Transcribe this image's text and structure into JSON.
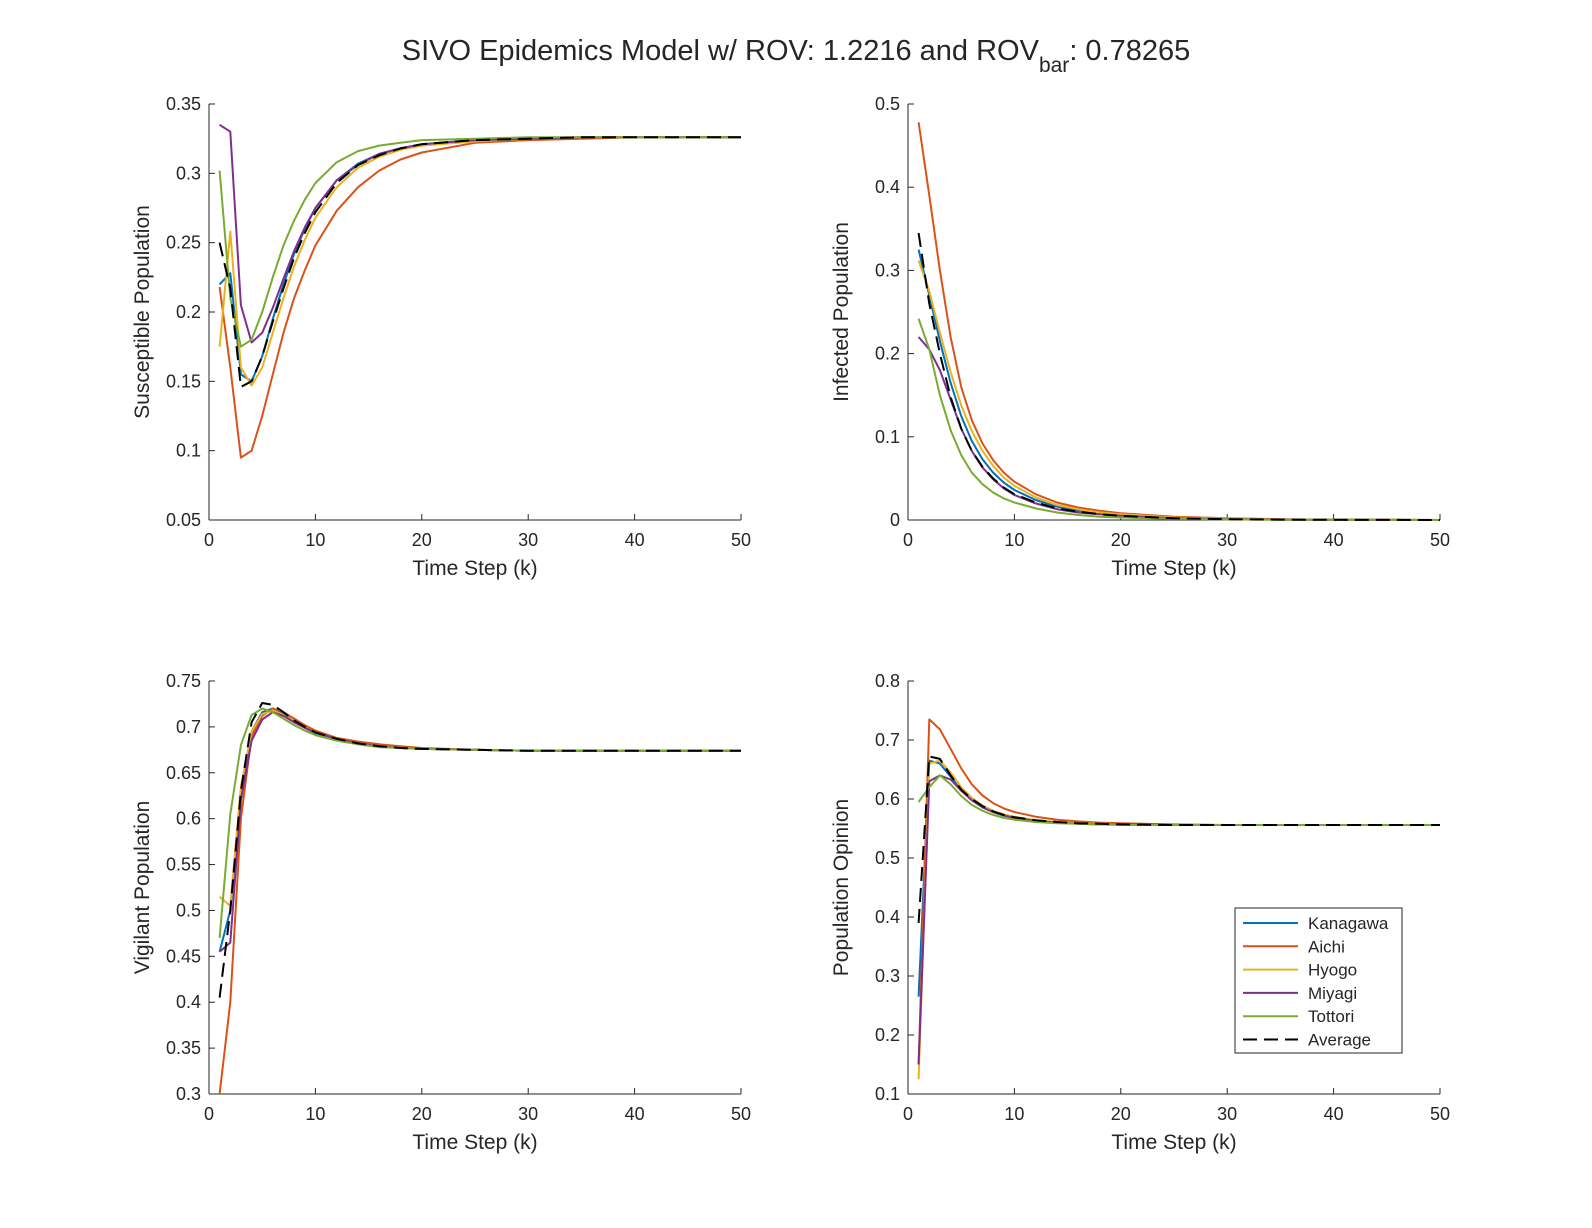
{
  "figure": {
    "title_main": "SIVO Epidemics Model w/ ROV: 1.2216 and ROV",
    "title_sub": "bar",
    "title_tail": ": 0.78265"
  },
  "colors": {
    "Kanagawa": "#0072BD",
    "Aichi": "#D95319",
    "Hyogo": "#EDB120",
    "Miyagi": "#7E2F8E",
    "Tottori": "#77AC30",
    "Average": "#000000",
    "axis": "#262626"
  },
  "legend": [
    "Kanagawa",
    "Aichi",
    "Hyogo",
    "Miyagi",
    "Tottori",
    "Average"
  ],
  "chart_data": [
    {
      "type": "line",
      "id": "susceptible",
      "xlabel": "Time Step (k)",
      "ylabel": "Susceptible Population",
      "xlim": [
        0,
        50
      ],
      "ylim": [
        0.05,
        0.35
      ],
      "xticks": [
        "0",
        "10",
        "20",
        "30",
        "40",
        "50"
      ],
      "yticks": [
        "0.05",
        "0.1",
        "0.15",
        "0.2",
        "0.25",
        "0.3",
        "0.35"
      ],
      "x": [
        1,
        2,
        3,
        4,
        5,
        6,
        7,
        8,
        9,
        10,
        12,
        14,
        16,
        18,
        20,
        25,
        30,
        35,
        40,
        45,
        50
      ],
      "series": [
        {
          "name": "Kanagawa",
          "values": [
            0.22,
            0.228,
            0.155,
            0.15,
            0.168,
            0.195,
            0.22,
            0.242,
            0.26,
            0.275,
            0.295,
            0.307,
            0.314,
            0.318,
            0.321,
            0.324,
            0.325,
            0.326,
            0.326,
            0.326,
            0.326
          ]
        },
        {
          "name": "Aichi",
          "values": [
            0.218,
            0.16,
            0.095,
            0.1,
            0.125,
            0.155,
            0.185,
            0.21,
            0.23,
            0.248,
            0.273,
            0.29,
            0.302,
            0.31,
            0.315,
            0.322,
            0.324,
            0.325,
            0.326,
            0.326,
            0.326
          ]
        },
        {
          "name": "Hyogo",
          "values": [
            0.175,
            0.258,
            0.16,
            0.147,
            0.16,
            0.185,
            0.21,
            0.233,
            0.252,
            0.268,
            0.29,
            0.304,
            0.312,
            0.317,
            0.32,
            0.323,
            0.325,
            0.326,
            0.326,
            0.326,
            0.326
          ]
        },
        {
          "name": "Miyagi",
          "values": [
            0.335,
            0.33,
            0.205,
            0.178,
            0.185,
            0.203,
            0.224,
            0.244,
            0.261,
            0.275,
            0.295,
            0.306,
            0.314,
            0.318,
            0.321,
            0.324,
            0.325,
            0.326,
            0.326,
            0.326,
            0.326
          ]
        },
        {
          "name": "Tottori",
          "values": [
            0.302,
            0.21,
            0.175,
            0.18,
            0.2,
            0.225,
            0.248,
            0.266,
            0.281,
            0.293,
            0.308,
            0.316,
            0.32,
            0.322,
            0.324,
            0.325,
            0.326,
            0.326,
            0.326,
            0.326,
            0.326
          ]
        },
        {
          "name": "Average",
          "values": [
            0.25,
            0.217,
            0.146,
            0.15,
            0.168,
            0.193,
            0.217,
            0.239,
            0.257,
            0.272,
            0.293,
            0.306,
            0.313,
            0.318,
            0.321,
            0.324,
            0.325,
            0.326,
            0.326,
            0.326,
            0.326
          ]
        }
      ]
    },
    {
      "type": "line",
      "id": "infected",
      "xlabel": "Time Step (k)",
      "ylabel": "Infected Population",
      "xlim": [
        0,
        50
      ],
      "ylim": [
        0,
        0.5
      ],
      "xticks": [
        "0",
        "10",
        "20",
        "30",
        "40",
        "50"
      ],
      "yticks": [
        "0",
        "0.1",
        "0.2",
        "0.3",
        "0.4",
        "0.5"
      ],
      "x": [
        1,
        2,
        3,
        4,
        5,
        6,
        7,
        8,
        9,
        10,
        12,
        14,
        16,
        18,
        20,
        25,
        30,
        35,
        40,
        45,
        50
      ],
      "series": [
        {
          "name": "Kanagawa",
          "values": [
            0.325,
            0.27,
            0.215,
            0.165,
            0.125,
            0.095,
            0.073,
            0.057,
            0.045,
            0.036,
            0.024,
            0.016,
            0.011,
            0.008,
            0.006,
            0.003,
            0.001,
            0.0005,
            0.0002,
            0.0001,
            0.0
          ]
        },
        {
          "name": "Aichi",
          "values": [
            0.478,
            0.39,
            0.3,
            0.22,
            0.16,
            0.12,
            0.092,
            0.072,
            0.057,
            0.046,
            0.031,
            0.021,
            0.015,
            0.011,
            0.008,
            0.004,
            0.002,
            0.001,
            0.0004,
            0.0002,
            0.0
          ]
        },
        {
          "name": "Hyogo",
          "values": [
            0.312,
            0.275,
            0.225,
            0.178,
            0.138,
            0.107,
            0.083,
            0.065,
            0.051,
            0.041,
            0.027,
            0.018,
            0.013,
            0.009,
            0.007,
            0.003,
            0.0015,
            0.0007,
            0.0003,
            0.0001,
            0.0
          ]
        },
        {
          "name": "Miyagi",
          "values": [
            0.22,
            0.205,
            0.18,
            0.145,
            0.11,
            0.083,
            0.063,
            0.049,
            0.038,
            0.03,
            0.02,
            0.013,
            0.009,
            0.007,
            0.005,
            0.002,
            0.001,
            0.0005,
            0.0002,
            0.0001,
            0.0
          ]
        },
        {
          "name": "Tottori",
          "values": [
            0.242,
            0.205,
            0.15,
            0.108,
            0.078,
            0.057,
            0.043,
            0.033,
            0.026,
            0.021,
            0.014,
            0.009,
            0.006,
            0.004,
            0.003,
            0.0015,
            0.0007,
            0.0003,
            0.0001,
            0.0,
            0.0
          ]
        },
        {
          "name": "Average",
          "values": [
            0.345,
            0.26,
            0.2,
            0.148,
            0.11,
            0.083,
            0.064,
            0.05,
            0.039,
            0.031,
            0.021,
            0.014,
            0.01,
            0.007,
            0.005,
            0.002,
            0.001,
            0.0005,
            0.0002,
            0.0001,
            0.0
          ]
        }
      ]
    },
    {
      "type": "line",
      "id": "vigilant",
      "xlabel": "Time Step (k)",
      "ylabel": "Vigilant Population",
      "xlim": [
        0,
        50
      ],
      "ylim": [
        0.3,
        0.75
      ],
      "xticks": [
        "0",
        "10",
        "20",
        "30",
        "40",
        "50"
      ],
      "yticks": [
        "0.3",
        "0.35",
        "0.4",
        "0.45",
        "0.5",
        "0.55",
        "0.6",
        "0.65",
        "0.7",
        "0.75"
      ],
      "x": [
        1,
        2,
        3,
        4,
        5,
        6,
        7,
        8,
        9,
        10,
        12,
        14,
        16,
        18,
        20,
        25,
        30,
        35,
        40,
        45,
        50
      ],
      "series": [
        {
          "name": "Kanagawa",
          "values": [
            0.455,
            0.5,
            0.63,
            0.695,
            0.716,
            0.72,
            0.714,
            0.706,
            0.699,
            0.693,
            0.686,
            0.682,
            0.679,
            0.677,
            0.676,
            0.675,
            0.674,
            0.674,
            0.674,
            0.674,
            0.674
          ]
        },
        {
          "name": "Aichi",
          "values": [
            0.3,
            0.4,
            0.6,
            0.69,
            0.712,
            0.72,
            0.716,
            0.709,
            0.702,
            0.696,
            0.688,
            0.684,
            0.681,
            0.679,
            0.677,
            0.675,
            0.674,
            0.674,
            0.674,
            0.674,
            0.674
          ]
        },
        {
          "name": "Hyogo",
          "values": [
            0.515,
            0.505,
            0.635,
            0.695,
            0.714,
            0.718,
            0.713,
            0.706,
            0.699,
            0.694,
            0.687,
            0.682,
            0.679,
            0.677,
            0.676,
            0.675,
            0.674,
            0.674,
            0.674,
            0.674,
            0.674
          ]
        },
        {
          "name": "Miyagi",
          "values": [
            0.455,
            0.465,
            0.62,
            0.685,
            0.708,
            0.716,
            0.712,
            0.705,
            0.699,
            0.694,
            0.687,
            0.682,
            0.679,
            0.677,
            0.676,
            0.675,
            0.674,
            0.674,
            0.674,
            0.674,
            0.674
          ]
        },
        {
          "name": "Tottori",
          "values": [
            0.47,
            0.605,
            0.68,
            0.713,
            0.72,
            0.716,
            0.709,
            0.702,
            0.696,
            0.691,
            0.685,
            0.681,
            0.678,
            0.677,
            0.676,
            0.675,
            0.674,
            0.674,
            0.674,
            0.674,
            0.674
          ]
        },
        {
          "name": "Average",
          "values": [
            0.405,
            0.5,
            0.63,
            0.705,
            0.726,
            0.724,
            0.716,
            0.707,
            0.7,
            0.694,
            0.687,
            0.682,
            0.679,
            0.677,
            0.676,
            0.675,
            0.674,
            0.674,
            0.674,
            0.674,
            0.674
          ]
        }
      ]
    },
    {
      "type": "line",
      "id": "opinion",
      "xlabel": "Time Step (k)",
      "ylabel": "Population Opinion",
      "xlim": [
        0,
        50
      ],
      "ylim": [
        0.1,
        0.8
      ],
      "xticks": [
        "0",
        "10",
        "20",
        "30",
        "40",
        "50"
      ],
      "yticks": [
        "0.1",
        "0.2",
        "0.3",
        "0.4",
        "0.5",
        "0.6",
        "0.7",
        "0.8"
      ],
      "x": [
        1,
        2,
        3,
        4,
        5,
        6,
        7,
        8,
        9,
        10,
        12,
        14,
        16,
        18,
        20,
        25,
        30,
        35,
        40,
        45,
        50
      ],
      "series": [
        {
          "name": "Kanagawa",
          "values": [
            0.265,
            0.665,
            0.66,
            0.638,
            0.615,
            0.598,
            0.586,
            0.578,
            0.572,
            0.568,
            0.563,
            0.56,
            0.558,
            0.557,
            0.557,
            0.556,
            0.556,
            0.556,
            0.556,
            0.556,
            0.556
          ]
        },
        {
          "name": "Aichi",
          "values": [
            0.15,
            0.735,
            0.718,
            0.685,
            0.652,
            0.625,
            0.606,
            0.593,
            0.584,
            0.578,
            0.57,
            0.565,
            0.562,
            0.56,
            0.559,
            0.557,
            0.556,
            0.556,
            0.556,
            0.556,
            0.556
          ]
        },
        {
          "name": "Hyogo",
          "values": [
            0.125,
            0.66,
            0.665,
            0.645,
            0.62,
            0.602,
            0.589,
            0.58,
            0.574,
            0.57,
            0.564,
            0.561,
            0.559,
            0.558,
            0.557,
            0.556,
            0.556,
            0.556,
            0.556,
            0.556,
            0.556
          ]
        },
        {
          "name": "Miyagi",
          "values": [
            0.15,
            0.63,
            0.64,
            0.633,
            0.614,
            0.598,
            0.586,
            0.578,
            0.572,
            0.568,
            0.563,
            0.56,
            0.558,
            0.557,
            0.557,
            0.556,
            0.556,
            0.556,
            0.556,
            0.556,
            0.556
          ]
        },
        {
          "name": "Tottori",
          "values": [
            0.595,
            0.62,
            0.64,
            0.625,
            0.605,
            0.59,
            0.58,
            0.573,
            0.568,
            0.565,
            0.561,
            0.559,
            0.558,
            0.557,
            0.556,
            0.556,
            0.556,
            0.556,
            0.556,
            0.556,
            0.556
          ]
        },
        {
          "name": "Average",
          "values": [
            0.39,
            0.672,
            0.668,
            0.64,
            0.616,
            0.6,
            0.588,
            0.579,
            0.573,
            0.569,
            0.564,
            0.561,
            0.559,
            0.558,
            0.557,
            0.556,
            0.556,
            0.556,
            0.556,
            0.556,
            0.556
          ]
        }
      ]
    }
  ]
}
